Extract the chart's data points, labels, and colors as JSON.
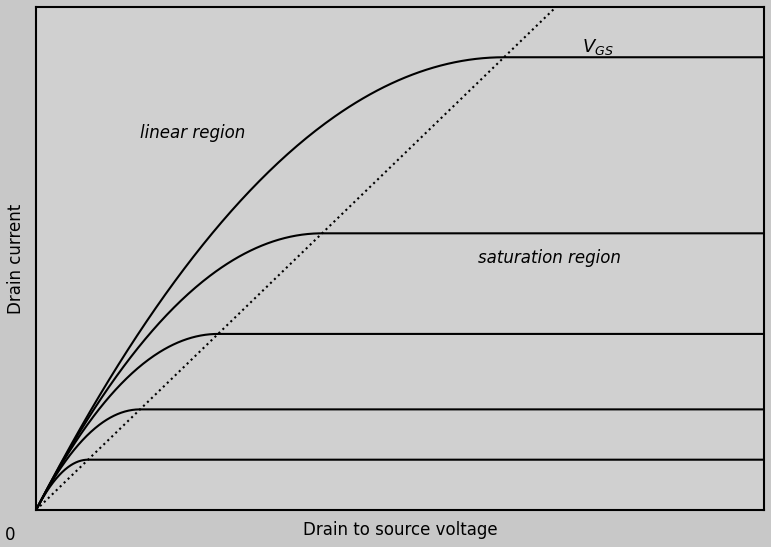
{
  "title": "",
  "xlabel": "Drain to source voltage",
  "ylabel": "Drain current",
  "background_color": "#c8c8c8",
  "plot_bg_color": "#d0d0d0",
  "curve_color": "#000000",
  "dotted_color": "#000000",
  "grid_color": "#a0a0a0",
  "text_linear": "linear region",
  "text_saturation": "saturation region",
  "text_vgs": "V",
  "text_vgs_sub": "GS",
  "curves": [
    {
      "IDSS": 1.0,
      "Vp": 1.0
    },
    {
      "IDSS": 2.0,
      "Vp": 2.0
    },
    {
      "IDSS": 3.5,
      "Vp": 3.5
    },
    {
      "IDSS": 5.5,
      "Vp": 5.5
    },
    {
      "IDSS": 9.0,
      "Vp": 9.0
    }
  ],
  "xmax": 14.0,
  "ymax": 10.0,
  "figsize": [
    7.71,
    5.47
  ],
  "dpi": 100
}
